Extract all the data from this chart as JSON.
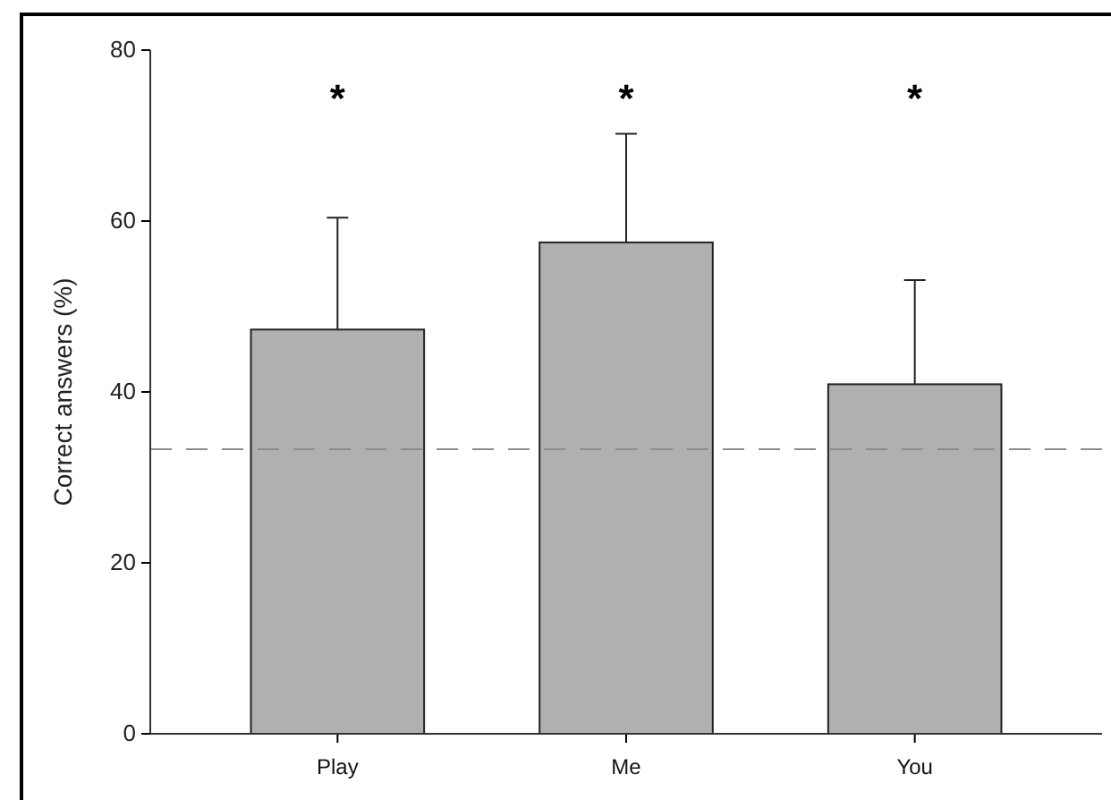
{
  "chart_data": {
    "type": "bar",
    "ylabel": "Correct answers (%)",
    "categories": [
      "Play",
      "Me",
      "You"
    ],
    "values": [
      47.3,
      57.5,
      40.9
    ],
    "color": "#b0b0b0",
    "errors": [
      [
        47.3,
        60.4
      ],
      [
        57.5,
        70.2
      ],
      [
        40.9,
        53.1
      ]
    ],
    "ylim": [
      0,
      80
    ],
    "yticks": [
      0,
      20,
      40,
      60,
      80
    ],
    "grid": false,
    "ref_lines": [
      {
        "axis": "y",
        "value": 33.3,
        "color": "#8c8c8c",
        "line_style": "dashed"
      }
    ],
    "annotations": [
      "*",
      "*",
      "*"
    ]
  }
}
